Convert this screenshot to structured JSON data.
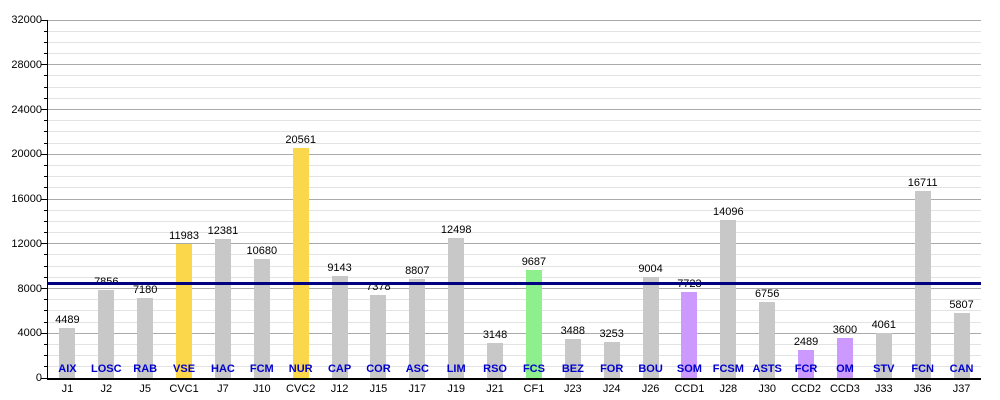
{
  "chart_data": {
    "type": "bar",
    "title": "",
    "xlabel": "",
    "ylabel": "",
    "y_axis": {
      "min": 0,
      "max": 32000,
      "major_step": 4000,
      "minor_step": 1000,
      "tick_labels": [
        "0",
        "4000",
        "8000",
        "12000",
        "16000",
        "20000",
        "24000",
        "28000",
        "32000"
      ]
    },
    "grid": "on",
    "legend": "none",
    "reference_line": {
      "value": 8449,
      "color": "#000080"
    },
    "palette": {
      "gray": "#c8c8c8",
      "yellow": "#fbd84b",
      "green": "#8ef08d",
      "purple": "#cc99ff"
    },
    "style_colors": {
      "grid_major": "#aaaaaa",
      "grid_minor": "#e3e3e3",
      "axis": "#000000",
      "team_label": "#0000cc",
      "value_label": "#000000",
      "reference_line": "#000080"
    },
    "bars": [
      {
        "team": "AIX",
        "match": "J1",
        "value": 4489,
        "color": "gray"
      },
      {
        "team": "LOSC",
        "match": "J2",
        "value": 7856,
        "color": "gray"
      },
      {
        "team": "RAB",
        "match": "J5",
        "value": 7180,
        "color": "gray"
      },
      {
        "team": "VSE",
        "match": "CVC1",
        "value": 11983,
        "color": "yellow"
      },
      {
        "team": "HAC",
        "match": "J7",
        "value": 12381,
        "color": "gray"
      },
      {
        "team": "FCM",
        "match": "J10",
        "value": 10680,
        "color": "gray"
      },
      {
        "team": "NUR",
        "match": "CVC2",
        "value": 20561,
        "color": "yellow"
      },
      {
        "team": "CAP",
        "match": "J12",
        "value": 9143,
        "color": "gray"
      },
      {
        "team": "COR",
        "match": "J15",
        "value": 7378,
        "color": "gray"
      },
      {
        "team": "ASC",
        "match": "J17",
        "value": 8807,
        "color": "gray"
      },
      {
        "team": "LIM",
        "match": "J19",
        "value": 12498,
        "color": "gray"
      },
      {
        "team": "RSO",
        "match": "J21",
        "value": 3148,
        "color": "gray"
      },
      {
        "team": "FCS",
        "match": "CF1",
        "value": 9687,
        "color": "green"
      },
      {
        "team": "BEZ",
        "match": "J23",
        "value": 3488,
        "color": "gray"
      },
      {
        "team": "FOR",
        "match": "J24",
        "value": 3253,
        "color": "gray"
      },
      {
        "team": "BOU",
        "match": "J26",
        "value": 9004,
        "color": "gray"
      },
      {
        "team": "SOM",
        "match": "CCD1",
        "value": 7723,
        "color": "purple"
      },
      {
        "team": "FCSM",
        "match": "J28",
        "value": 14096,
        "color": "gray"
      },
      {
        "team": "ASTS",
        "match": "J30",
        "value": 6756,
        "color": "gray"
      },
      {
        "team": "FCR",
        "match": "CCD2",
        "value": 2489,
        "color": "purple"
      },
      {
        "team": "OM",
        "match": "CCD3",
        "value": 3600,
        "color": "purple"
      },
      {
        "team": "STV",
        "match": "J33",
        "value": 4061,
        "color": "gray"
      },
      {
        "team": "FCN",
        "match": "J36",
        "value": 16711,
        "color": "gray"
      },
      {
        "team": "CAN",
        "match": "J37",
        "value": 5807,
        "color": "gray"
      }
    ]
  }
}
